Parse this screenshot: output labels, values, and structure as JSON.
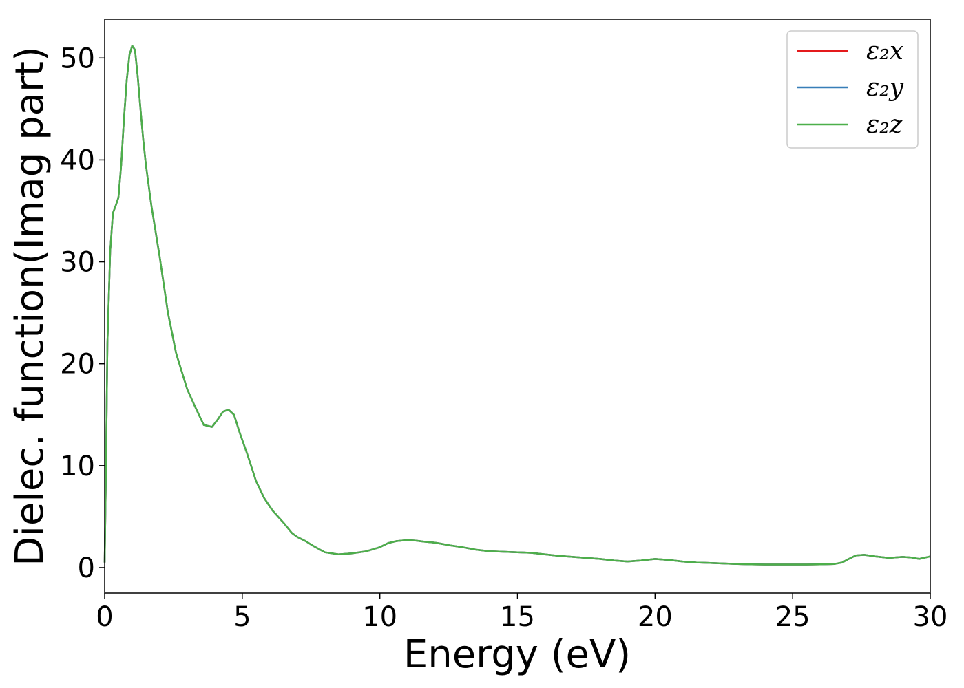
{
  "chart_data": {
    "type": "line",
    "xlabel": "Energy (eV)",
    "ylabel": "Dielec. function(Imag part)",
    "xlim": [
      0,
      30
    ],
    "ylim": [
      -2.5,
      53.8
    ],
    "x_ticks": [
      "0",
      "5",
      "10",
      "15",
      "20",
      "25",
      "30"
    ],
    "y_ticks": [
      "0",
      "10",
      "20",
      "30",
      "40",
      "50"
    ],
    "x_tick_values": [
      0,
      5,
      10,
      15,
      20,
      25,
      30
    ],
    "y_tick_values": [
      0,
      10,
      20,
      30,
      40,
      50
    ],
    "grid": false,
    "legend_position": "top-right",
    "series": [
      {
        "name": "ε₂x",
        "color": "#e41a1c"
      },
      {
        "name": "ε₂y",
        "color": "#377eb8"
      },
      {
        "name": "ε₂z",
        "color": "#4daf4a"
      }
    ],
    "x": [
      0,
      0.05,
      0.1,
      0.2,
      0.3,
      0.4,
      0.5,
      0.6,
      0.7,
      0.8,
      0.9,
      1.0,
      1.1,
      1.2,
      1.3,
      1.4,
      1.5,
      1.7,
      2.0,
      2.3,
      2.6,
      3.0,
      3.3,
      3.6,
      3.9,
      4.1,
      4.3,
      4.5,
      4.7,
      4.9,
      5.2,
      5.5,
      5.8,
      6.1,
      6.5,
      6.8,
      7.0,
      7.3,
      7.6,
      8.0,
      8.5,
      9.0,
      9.5,
      10.0,
      10.3,
      10.6,
      11.0,
      11.3,
      11.6,
      12.0,
      12.5,
      13.0,
      13.5,
      14.0,
      14.5,
      15.0,
      15.5,
      16.0,
      16.5,
      17.0,
      17.5,
      18.0,
      18.5,
      19.0,
      19.5,
      20.0,
      20.5,
      21.0,
      21.5,
      22.0,
      22.5,
      23.0,
      23.5,
      24.0,
      24.5,
      25.0,
      25.5,
      26.0,
      26.5,
      26.8,
      27.0,
      27.3,
      27.6,
      28.0,
      28.5,
      29.0,
      29.3,
      29.6,
      30.0
    ],
    "y": [
      0.5,
      10.0,
      22.0,
      31.0,
      34.8,
      35.5,
      36.3,
      39.5,
      44.0,
      47.8,
      50.3,
      51.2,
      50.8,
      48.2,
      45.0,
      42.0,
      39.5,
      35.5,
      30.5,
      25.0,
      21.0,
      17.5,
      15.7,
      14.0,
      13.8,
      14.5,
      15.3,
      15.5,
      15.0,
      13.3,
      11.0,
      8.5,
      6.8,
      5.6,
      4.4,
      3.4,
      3.0,
      2.6,
      2.1,
      1.5,
      1.3,
      1.4,
      1.6,
      2.0,
      2.4,
      2.6,
      2.7,
      2.65,
      2.55,
      2.45,
      2.2,
      2.0,
      1.75,
      1.6,
      1.55,
      1.5,
      1.45,
      1.3,
      1.15,
      1.05,
      0.95,
      0.85,
      0.7,
      0.6,
      0.7,
      0.85,
      0.75,
      0.6,
      0.5,
      0.45,
      0.4,
      0.35,
      0.32,
      0.3,
      0.3,
      0.3,
      0.3,
      0.32,
      0.35,
      0.5,
      0.8,
      1.2,
      1.25,
      1.1,
      0.95,
      1.05,
      1.0,
      0.85,
      1.1
    ]
  }
}
